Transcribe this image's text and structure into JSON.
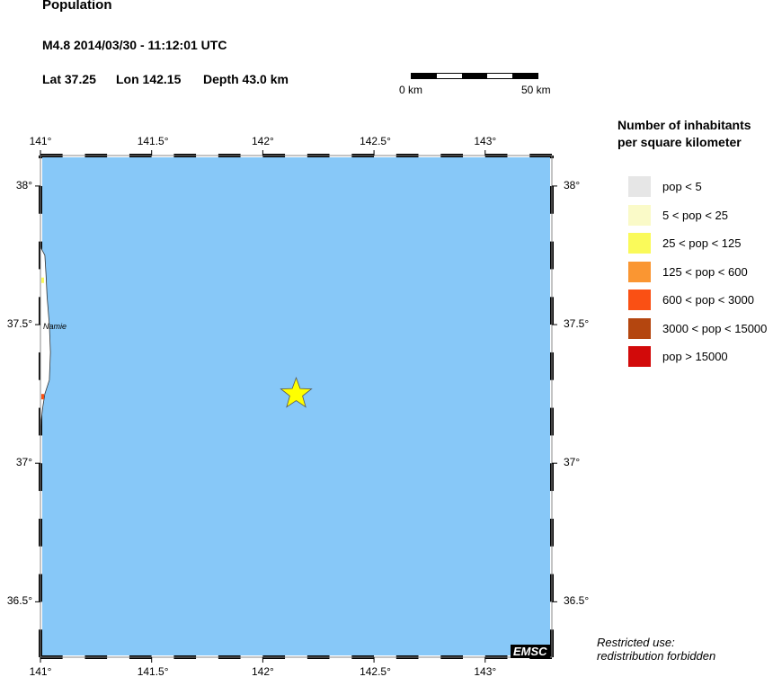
{
  "header": {
    "title": "Population",
    "event": "M4.8  2014/03/30 - 11:12:01 UTC",
    "lat": "Lat 37.25",
    "lon": "Lon 142.15",
    "depth": "Depth  43.0 km"
  },
  "scale_bar": {
    "start_label": "0 km",
    "end_label": "50 km"
  },
  "map": {
    "lon_range": [
      141.0,
      143.3
    ],
    "lat_range": [
      36.3,
      38.11
    ],
    "lon_ticks": [
      {
        "value": 141.0,
        "label": "141°"
      },
      {
        "value": 141.5,
        "label": "141.5°"
      },
      {
        "value": 142.0,
        "label": "142°"
      },
      {
        "value": 142.5,
        "label": "142.5°"
      },
      {
        "value": 143.0,
        "label": "143°"
      }
    ],
    "lat_ticks": [
      {
        "value": 38.0,
        "label": "38°"
      },
      {
        "value": 37.5,
        "label": "37.5°"
      },
      {
        "value": 37.0,
        "label": "37°"
      },
      {
        "value": 36.5,
        "label": "36.5°"
      }
    ],
    "sea_color": "#87c8f8",
    "land_color": "#ffffff",
    "epicenter": {
      "lon": 142.15,
      "lat": 37.25,
      "marker": "star-icon",
      "color": "#ffff00"
    },
    "places": [
      {
        "name": "Namie",
        "lon": 141.0,
        "lat": 37.49
      }
    ],
    "logo": "EMSC"
  },
  "legend": {
    "title_line1": "Number of inhabitants",
    "title_line2": "per square kilometer",
    "items": [
      {
        "label": "pop < 5",
        "color": "#e6e6e6"
      },
      {
        "label": "5 < pop < 25",
        "color": "#fafac8"
      },
      {
        "label": "25 < pop < 125",
        "color": "#fafa5a"
      },
      {
        "label": "125 < pop < 600",
        "color": "#fa9632"
      },
      {
        "label": "600 < pop < 3000",
        "color": "#fa5014"
      },
      {
        "label": "3000 < pop < 15000",
        "color": "#b4460f"
      },
      {
        "label": "pop > 15000",
        "color": "#d20a0a"
      }
    ]
  },
  "footer": {
    "line1": "Restricted use:",
    "line2": "redistribution forbidden"
  }
}
